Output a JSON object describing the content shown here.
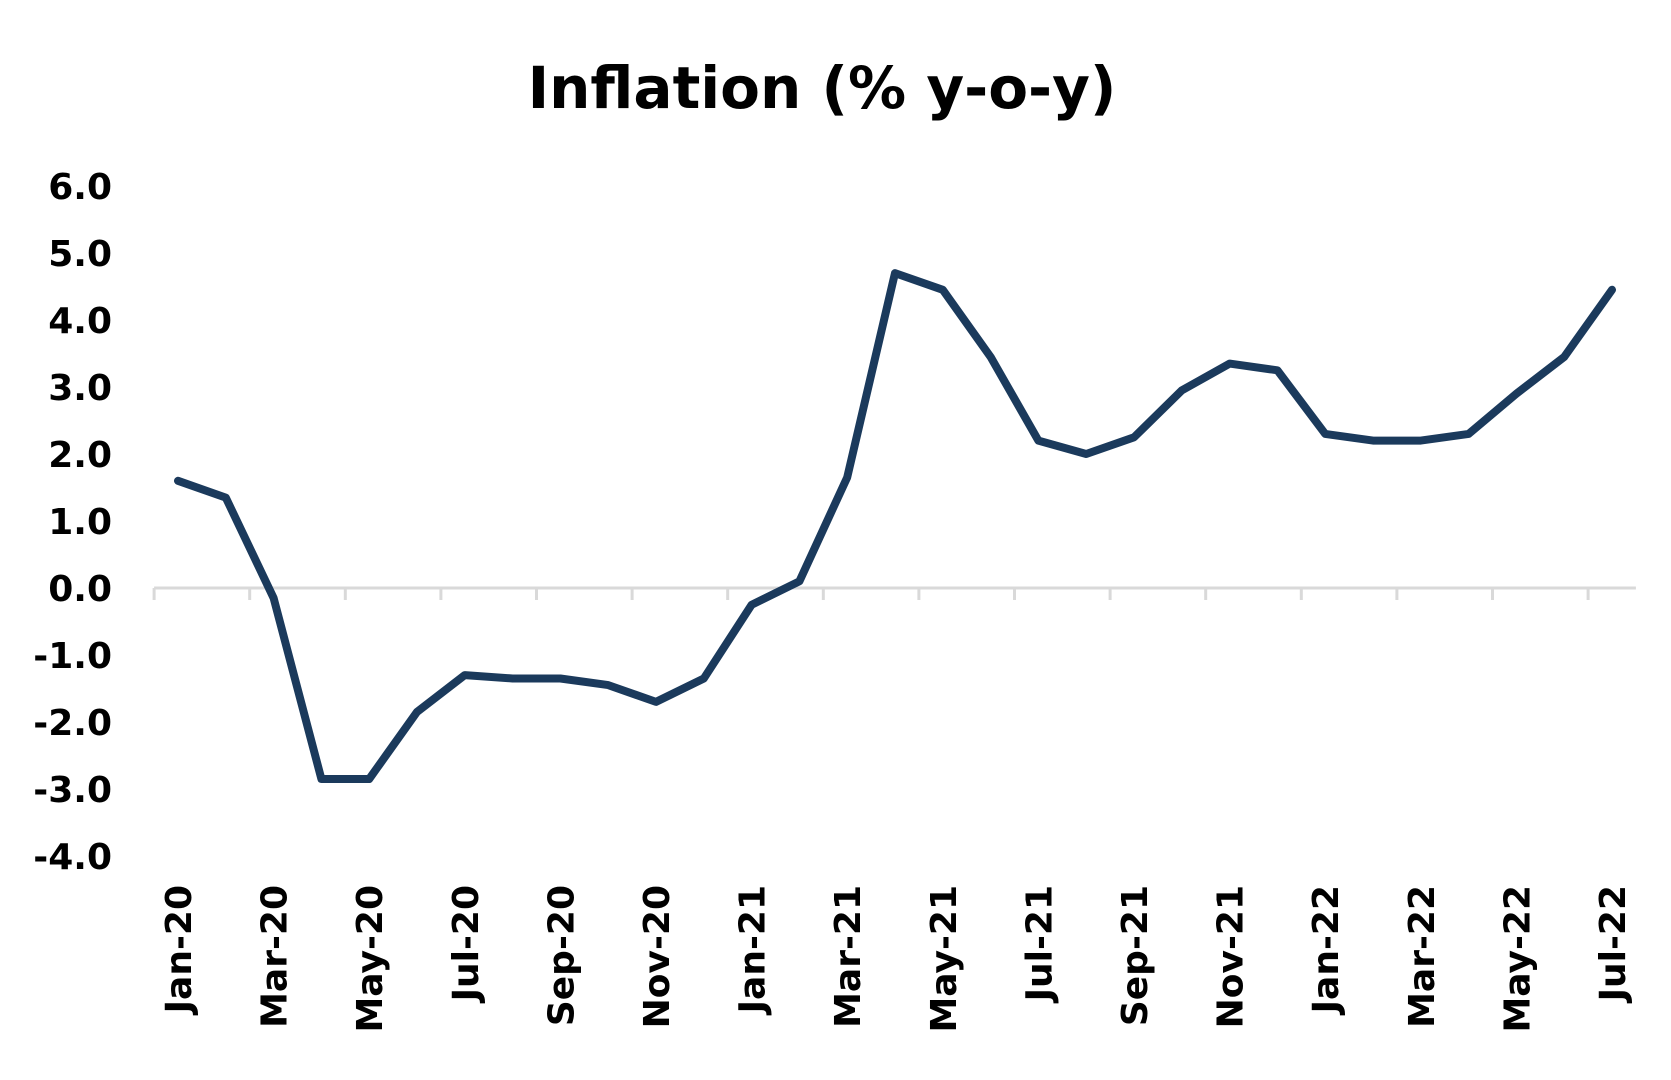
{
  "chart_data": {
    "type": "line",
    "title": "Inflation (% y-o-y)",
    "xlabel": "",
    "ylabel": "",
    "ylim": [
      -4.0,
      6.0
    ],
    "yticks": [
      "6.0",
      "5.0",
      "4.0",
      "3.0",
      "2.0",
      "1.0",
      "0.0",
      "-1.0",
      "-2.0",
      "-3.0",
      "-4.0"
    ],
    "x_tick_labels": [
      "Jan-20",
      "Mar-20",
      "May-20",
      "Jul-20",
      "Sep-20",
      "Nov-20",
      "Jan-21",
      "Mar-21",
      "May-21",
      "Jul-21",
      "Sep-21",
      "Nov-21",
      "Jan-22",
      "Mar-22",
      "May-22",
      "Jul-22"
    ],
    "categories": [
      "Jan-20",
      "Feb-20",
      "Mar-20",
      "Apr-20",
      "May-20",
      "Jun-20",
      "Jul-20",
      "Aug-20",
      "Sep-20",
      "Oct-20",
      "Nov-20",
      "Dec-20",
      "Jan-21",
      "Feb-21",
      "Mar-21",
      "Apr-21",
      "May-21",
      "Jun-21",
      "Jul-21",
      "Aug-21",
      "Sep-21",
      "Oct-21",
      "Nov-21",
      "Dec-21",
      "Jan-22",
      "Feb-22",
      "Mar-22",
      "Apr-22",
      "May-22",
      "Jun-22",
      "Jul-22"
    ],
    "series": [
      {
        "values": [
          1.6,
          1.35,
          -0.15,
          -2.85,
          -2.85,
          -1.85,
          -1.3,
          -1.35,
          -1.35,
          -1.45,
          -1.7,
          -1.35,
          -0.25,
          0.1,
          1.65,
          4.7,
          4.45,
          3.45,
          2.2,
          2.0,
          2.25,
          2.95,
          3.35,
          3.25,
          2.3,
          2.2,
          2.2,
          2.3,
          2.9,
          3.45,
          4.45
        ],
        "color": "#1b3a5c"
      }
    ],
    "grid": false,
    "legend": "none"
  }
}
